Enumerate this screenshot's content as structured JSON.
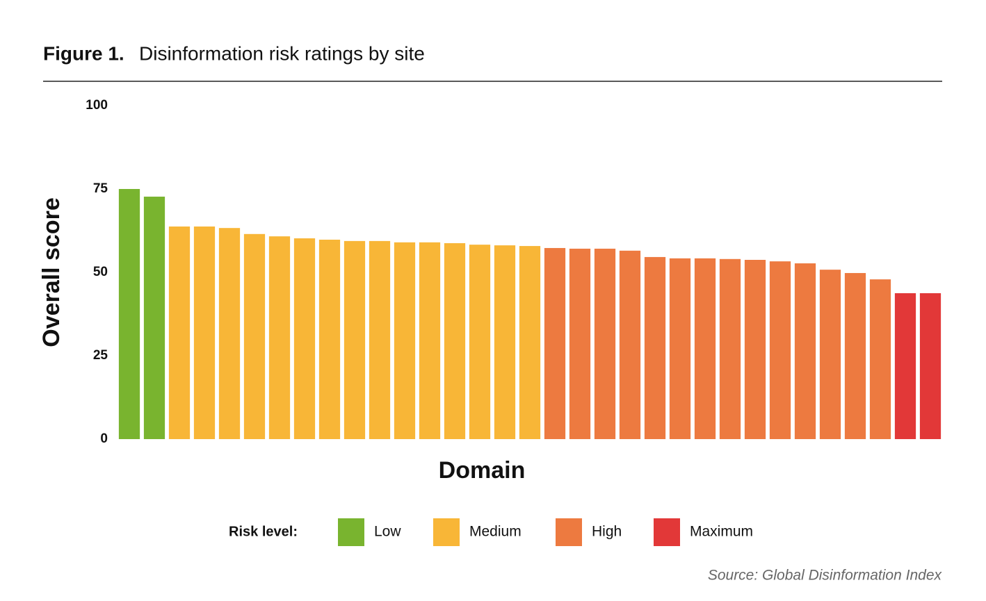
{
  "chart_data": {
    "type": "bar",
    "title_prefix": "Figure 1.",
    "title": "Disinformation risk ratings by site",
    "ylabel": "Overall score",
    "xlabel": "Domain",
    "source": "Source: Global Disinformation Index",
    "legend_title": "Risk level:",
    "categories": [
      null,
      null,
      null,
      null,
      null,
      null,
      null,
      null,
      null,
      null,
      null,
      null,
      null,
      null,
      null,
      null,
      null,
      null,
      null,
      null,
      null,
      null,
      null,
      null,
      null,
      null,
      null,
      null,
      null,
      null,
      null,
      null,
      null
    ],
    "series": [
      {
        "name": "Low",
        "color": "#79b42f",
        "values": [
          75,
          72.7,
          null,
          null,
          null,
          null,
          null,
          null,
          null,
          null,
          null,
          null,
          null,
          null,
          null,
          null,
          null,
          null,
          null,
          null,
          null,
          null,
          null,
          null,
          null,
          null,
          null,
          null,
          null,
          null,
          null,
          null,
          null
        ]
      },
      {
        "name": "Medium",
        "color": "#f8b637",
        "values": [
          null,
          null,
          63.75,
          63.75,
          63.3,
          61.5,
          60.8,
          60.2,
          59.8,
          59.4,
          59.4,
          59,
          59,
          58.75,
          58.3,
          58.1,
          57.9,
          null,
          null,
          null,
          null,
          null,
          null,
          null,
          null,
          null,
          null,
          null,
          null,
          null,
          null,
          null,
          null
        ]
      },
      {
        "name": "High",
        "color": "#ed7a40",
        "values": [
          null,
          null,
          null,
          null,
          null,
          null,
          null,
          null,
          null,
          null,
          null,
          null,
          null,
          null,
          null,
          null,
          null,
          57.3,
          57.1,
          57.1,
          56.5,
          54.6,
          54.2,
          54.2,
          54,
          53.75,
          53.3,
          52.7,
          50.8,
          49.8,
          47.9,
          null,
          null
        ]
      },
      {
        "name": "Maximum",
        "color": "#e23838",
        "values": [
          null,
          null,
          null,
          null,
          null,
          null,
          null,
          null,
          null,
          null,
          null,
          null,
          null,
          null,
          null,
          null,
          null,
          null,
          null,
          null,
          null,
          null,
          null,
          null,
          null,
          null,
          null,
          null,
          null,
          null,
          null,
          43.75,
          43.75
        ]
      }
    ],
    "ylim": [
      0,
      100
    ],
    "yticks": [
      0,
      25,
      50,
      75,
      100
    ],
    "grid": false
  }
}
